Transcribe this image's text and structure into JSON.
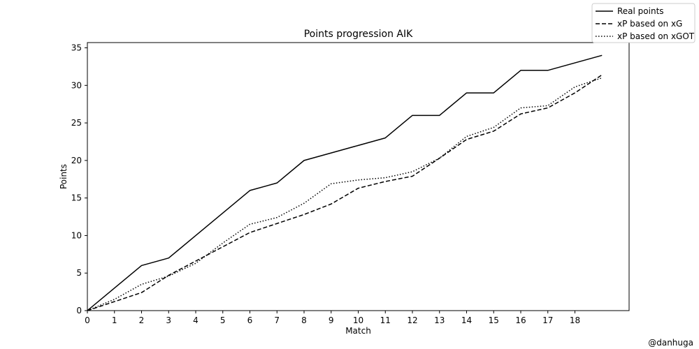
{
  "chart_data": {
    "type": "line",
    "title": "Points progression AIK",
    "xlabel": "Match",
    "ylabel": "Points",
    "x": [
      0,
      1,
      2,
      3,
      4,
      5,
      6,
      7,
      8,
      9,
      10,
      11,
      12,
      13,
      14,
      15,
      16,
      17,
      18,
      19
    ],
    "xticks": [
      0,
      1,
      2,
      3,
      4,
      5,
      6,
      7,
      8,
      9,
      10,
      11,
      12,
      13,
      14,
      15,
      16,
      17,
      18
    ],
    "yticks": [
      0,
      5,
      10,
      15,
      20,
      25,
      30,
      35
    ],
    "xlim": [
      0,
      20
    ],
    "ylim": [
      0,
      35.7
    ],
    "grid": false,
    "legend_position": "top-right",
    "series": [
      {
        "name": "Real points",
        "style": "solid",
        "values": [
          0,
          3,
          6,
          7,
          10,
          13,
          16,
          17,
          20,
          21,
          22,
          23,
          26,
          26,
          29,
          29,
          32,
          32,
          33,
          34
        ]
      },
      {
        "name": "xP based on xG",
        "style": "dashed",
        "values": [
          0,
          1.2,
          2.4,
          4.7,
          6.6,
          8.5,
          10.4,
          11.6,
          12.8,
          14.2,
          16.3,
          17.2,
          17.9,
          20.3,
          22.8,
          23.9,
          26.2,
          27.0,
          29.0,
          31.4
        ]
      },
      {
        "name": "xP based on xGOT",
        "style": "dotted",
        "values": [
          0,
          1.5,
          3.5,
          4.6,
          6.3,
          9.0,
          11.5,
          12.4,
          14.3,
          16.9,
          17.4,
          17.7,
          18.5,
          20.3,
          23.2,
          24.4,
          27.0,
          27.3,
          29.8,
          31.0
        ]
      }
    ]
  },
  "credit": "@danhuga"
}
